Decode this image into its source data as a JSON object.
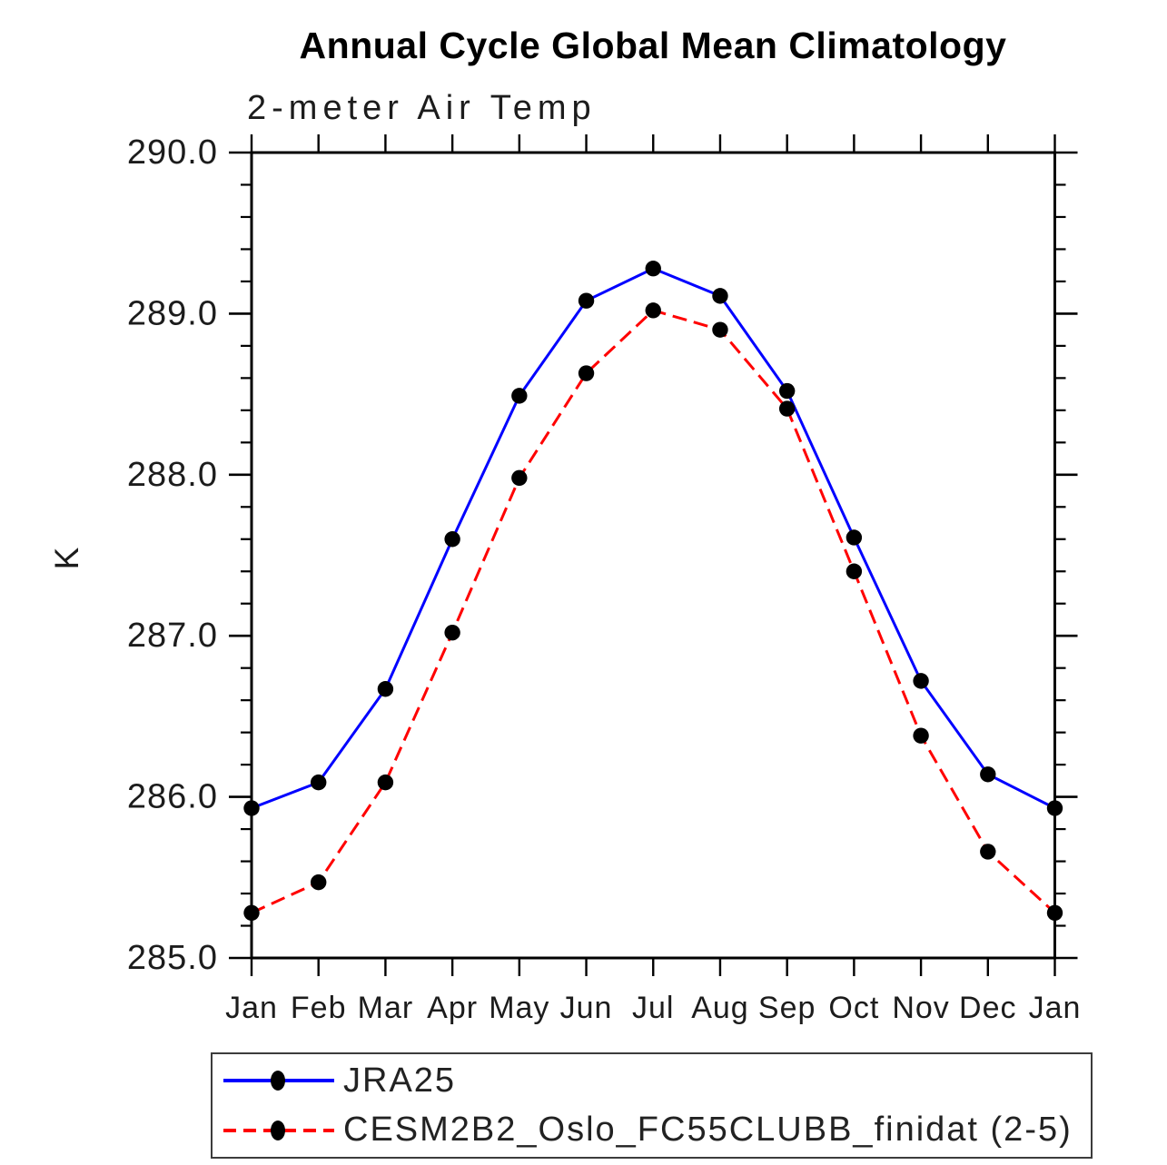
{
  "page": {
    "background": "#ffffff"
  },
  "chart_data": {
    "type": "line",
    "title": "Annual Cycle Global Mean Climatology",
    "subtitle": "2-meter Air Temp",
    "ylabel": "K",
    "xlabel": "",
    "x_categories": [
      "Jan",
      "Feb",
      "Mar",
      "Apr",
      "May",
      "Jun",
      "Jul",
      "Aug",
      "Sep",
      "Oct",
      "Nov",
      "Dec",
      "Jan"
    ],
    "ylim": [
      285.0,
      290.0
    ],
    "y_major_tick_labels": [
      "285.0",
      "286.0",
      "287.0",
      "288.0",
      "289.0",
      "290.0"
    ],
    "y_minor_step": 0.2,
    "grid": false,
    "legend_position": "bottom-box",
    "axis_color": "#000000",
    "marker_shape": "filled-circle",
    "series": [
      {
        "name": "JRA25",
        "color": "#0000ff",
        "line_style": "solid",
        "marker_color": "#000000",
        "values": [
          285.93,
          286.09,
          286.67,
          287.6,
          288.49,
          289.08,
          289.28,
          289.11,
          288.52,
          287.61,
          286.72,
          286.14,
          285.93
        ]
      },
      {
        "name": "CESM2B2_Oslo_FC55CLUBB_finidat (2-5)",
        "color": "#ff0000",
        "line_style": "dashed",
        "marker_color": "#000000",
        "values": [
          285.28,
          285.47,
          286.09,
          287.02,
          287.98,
          288.63,
          289.02,
          288.9,
          288.41,
          287.4,
          286.38,
          285.66,
          285.28
        ]
      }
    ]
  }
}
